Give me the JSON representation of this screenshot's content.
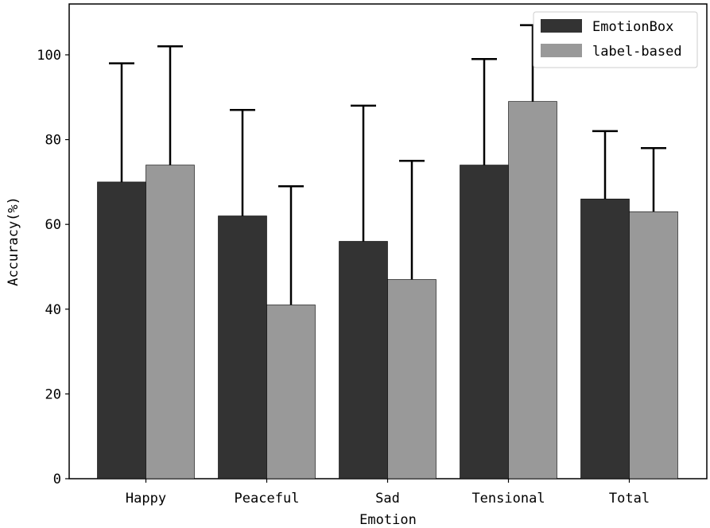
{
  "chart_data": {
    "type": "bar",
    "title": "",
    "xlabel": "Emotion",
    "ylabel": "Accuracy(%)",
    "categories": [
      "Happy",
      "Peaceful",
      "Sad",
      "Tensional",
      "Total"
    ],
    "ylim": [
      0,
      112
    ],
    "yticks": [
      0,
      20,
      40,
      60,
      80,
      100
    ],
    "grid": false,
    "legend_position": "top-right",
    "series": [
      {
        "name": "EmotionBox",
        "color": "#333333",
        "values": [
          70,
          62,
          56,
          74,
          66
        ],
        "error_upper": [
          98,
          87,
          88,
          99,
          82
        ]
      },
      {
        "name": "label-based",
        "color": "#999999",
        "values": [
          74,
          41,
          47,
          89,
          63
        ],
        "error_upper": [
          102,
          69,
          75,
          107,
          78
        ]
      }
    ]
  }
}
